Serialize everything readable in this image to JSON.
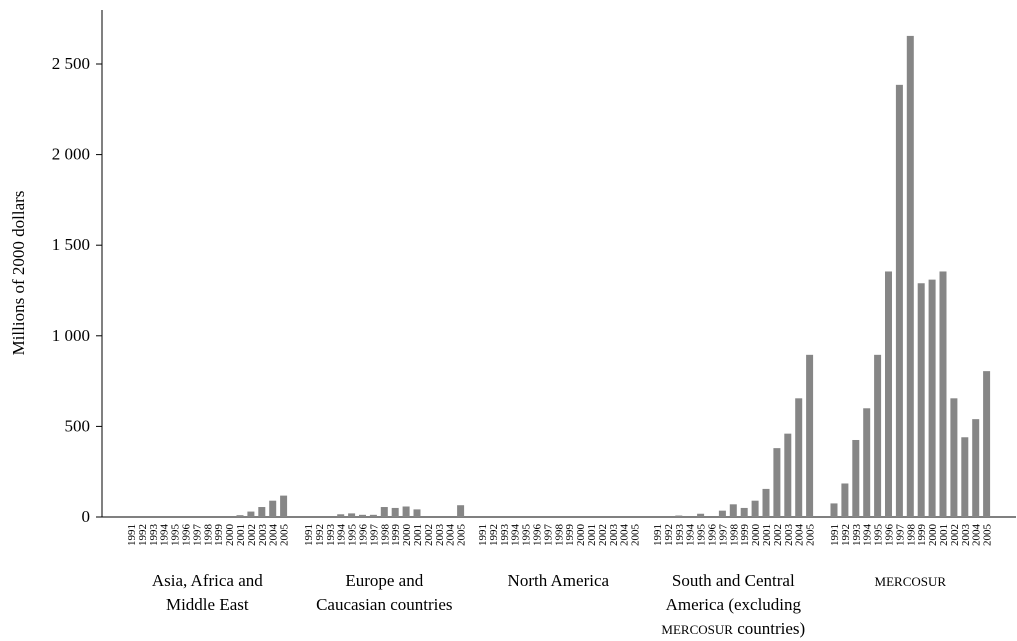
{
  "chart_data": {
    "type": "bar",
    "title": "",
    "xlabel": "",
    "ylabel": "Millions of 2000 dollars",
    "ylim": [
      0,
      2750
    ],
    "yticks": [
      0,
      500,
      1000,
      1500,
      2000,
      2500
    ],
    "ytick_labels": [
      "0",
      "500",
      "1 000",
      "1 500",
      "2 000",
      "2 500"
    ],
    "grid": false,
    "legend": "none",
    "bar_color": "#868686",
    "years": [
      "1991",
      "1992",
      "1993",
      "1994",
      "1995",
      "1996",
      "1997",
      "1998",
      "1999",
      "2000",
      "2001",
      "2002",
      "2003",
      "2004",
      "2005"
    ],
    "groups": [
      {
        "label_lines": [
          "Asia, Africa and",
          "Middle East"
        ],
        "years": [
          "1991",
          "1992",
          "1993",
          "1994",
          "1995",
          "1996",
          "1997",
          "1998",
          "1999",
          "2000",
          "2001",
          "2002",
          "2003",
          "2004",
          "2005"
        ],
        "values": [
          0,
          0,
          0,
          0,
          0,
          0,
          0,
          0,
          0,
          0,
          10,
          30,
          55,
          90,
          118
        ]
      },
      {
        "label_lines": [
          "Europe and",
          "Caucasian countries"
        ],
        "years": [
          "1991",
          "1992",
          "1993",
          "1994",
          "1995",
          "1996",
          "1997",
          "1998",
          "1999",
          "2000",
          "2001",
          "2002",
          "2003",
          "2004",
          "2005"
        ],
        "values": [
          0,
          0,
          0,
          15,
          20,
          12,
          12,
          55,
          50,
          58,
          42,
          0,
          0,
          0,
          65
        ]
      },
      {
        "label_lines": [
          "North America"
        ],
        "years": [
          "1991",
          "1992",
          "1993",
          "1994",
          "1995",
          "1996",
          "1997",
          "1998",
          "1999",
          "2000",
          "2001",
          "2002",
          "2003",
          "2004",
          "2005"
        ],
        "values": [
          0,
          0,
          0,
          0,
          0,
          0,
          0,
          0,
          0,
          0,
          0,
          0,
          0,
          0,
          0
        ]
      },
      {
        "label_lines": [
          "South and Central",
          "America (excluding",
          "MERCOSUR countries)"
        ],
        "years": [
          "1991",
          "1992",
          "1993",
          "1994",
          "1995",
          "1996",
          "1997",
          "1998",
          "1999",
          "2000",
          "2001",
          "2002",
          "2003",
          "2004",
          "2005"
        ],
        "values": [
          0,
          0,
          8,
          0,
          18,
          0,
          35,
          70,
          50,
          90,
          155,
          380,
          460,
          655,
          895
        ]
      },
      {
        "label_lines": [
          "MERCOSUR"
        ],
        "years": [
          "1991",
          "1992",
          "1993",
          "1994",
          "1995",
          "1996",
          "1997",
          "1998",
          "1999",
          "2000",
          "2001",
          "2002",
          "2003",
          "2004",
          "2005"
        ],
        "values": [
          75,
          185,
          425,
          600,
          895,
          1355,
          2385,
          2655,
          1290,
          1310,
          1355,
          655,
          440,
          540,
          805
        ]
      }
    ]
  }
}
